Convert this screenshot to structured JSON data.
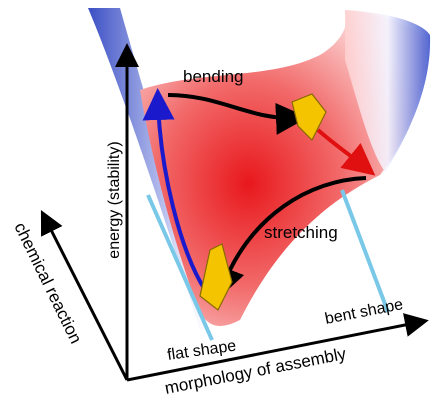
{
  "labels": {
    "bending": "bending",
    "stretching": "stretching",
    "energy_axis": "energy (stability)",
    "chemical_axis": "chemical reaction",
    "flat_shape": "flat shape",
    "bent_shape": "bent shape",
    "morphology_axis": "morphology of assembly"
  }
}
